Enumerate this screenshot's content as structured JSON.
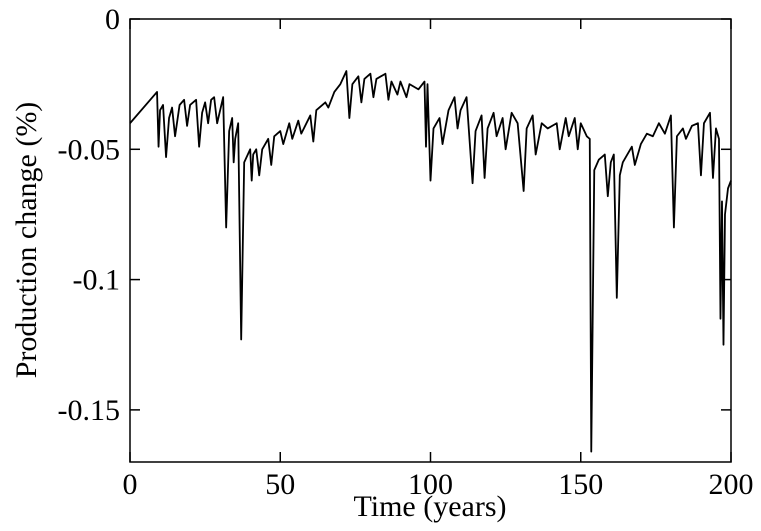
{
  "chart_data": {
    "type": "line",
    "xlabel": "Time (years)",
    "ylabel": "Production change (%)",
    "color": "#000000",
    "xlim": [
      0,
      200
    ],
    "ylim": [
      -0.17,
      0
    ],
    "xticks": [
      0,
      50,
      100,
      150,
      200
    ],
    "yticks": [
      0,
      -0.05,
      -0.1,
      -0.15
    ],
    "x": [
      0,
      9,
      9.5,
      10,
      11,
      12,
      13,
      14,
      15,
      16.5,
      18,
      19,
      20,
      22,
      23,
      24,
      25,
      26,
      27,
      28,
      29,
      31,
      32,
      33,
      34,
      34.5,
      35,
      36,
      37,
      38,
      40,
      40.5,
      41,
      42,
      43,
      44,
      46,
      47,
      48,
      50,
      51,
      53,
      54,
      56,
      57,
      60,
      61,
      62,
      65,
      66,
      68,
      70,
      72,
      73,
      74,
      76,
      77,
      78,
      80,
      81,
      82,
      85,
      86,
      87,
      89,
      90,
      92,
      93,
      96,
      98,
      98.5,
      99,
      100,
      101,
      103,
      104,
      106,
      108,
      109,
      110,
      112,
      114,
      115,
      117,
      118,
      119,
      121,
      122,
      124,
      125,
      127,
      129,
      131,
      132,
      134,
      135,
      137,
      139,
      142,
      143,
      145,
      146,
      148,
      149,
      150,
      152,
      153,
      153.5,
      154.5,
      156,
      158,
      159,
      160,
      161,
      162,
      163,
      164,
      167,
      168,
      170,
      172,
      174,
      176,
      178,
      180,
      181,
      182,
      184,
      185,
      187,
      189,
      190,
      191,
      193,
      194,
      195,
      196,
      196.5,
      197,
      197.5,
      198,
      199,
      200
    ],
    "values": [
      -0.04,
      -0.028,
      -0.049,
      -0.035,
      -0.033,
      -0.053,
      -0.038,
      -0.034,
      -0.045,
      -0.033,
      -0.031,
      -0.041,
      -0.033,
      -0.031,
      -0.049,
      -0.036,
      -0.032,
      -0.04,
      -0.031,
      -0.03,
      -0.04,
      -0.03,
      -0.08,
      -0.043,
      -0.038,
      -0.055,
      -0.046,
      -0.04,
      -0.123,
      -0.055,
      -0.05,
      -0.062,
      -0.052,
      -0.05,
      -0.06,
      -0.05,
      -0.046,
      -0.056,
      -0.045,
      -0.043,
      -0.048,
      -0.04,
      -0.046,
      -0.039,
      -0.044,
      -0.037,
      -0.047,
      -0.035,
      -0.032,
      -0.034,
      -0.028,
      -0.025,
      -0.02,
      -0.038,
      -0.025,
      -0.022,
      -0.032,
      -0.023,
      -0.021,
      -0.03,
      -0.023,
      -0.021,
      -0.031,
      -0.024,
      -0.029,
      -0.024,
      -0.03,
      -0.025,
      -0.027,
      -0.024,
      -0.049,
      -0.025,
      -0.062,
      -0.042,
      -0.038,
      -0.048,
      -0.035,
      -0.03,
      -0.042,
      -0.035,
      -0.03,
      -0.063,
      -0.043,
      -0.037,
      -0.061,
      -0.042,
      -0.036,
      -0.045,
      -0.038,
      -0.05,
      -0.036,
      -0.04,
      -0.066,
      -0.042,
      -0.037,
      -0.052,
      -0.04,
      -0.042,
      -0.04,
      -0.05,
      -0.038,
      -0.045,
      -0.038,
      -0.05,
      -0.04,
      -0.045,
      -0.046,
      -0.166,
      -0.058,
      -0.054,
      -0.052,
      -0.068,
      -0.055,
      -0.052,
      -0.107,
      -0.06,
      -0.055,
      -0.049,
      -0.056,
      -0.048,
      -0.044,
      -0.045,
      -0.04,
      -0.044,
      -0.037,
      -0.08,
      -0.045,
      -0.042,
      -0.046,
      -0.041,
      -0.04,
      -0.06,
      -0.04,
      -0.036,
      -0.061,
      -0.042,
      -0.046,
      -0.115,
      -0.07,
      -0.125,
      -0.075,
      -0.065,
      -0.062
    ]
  }
}
